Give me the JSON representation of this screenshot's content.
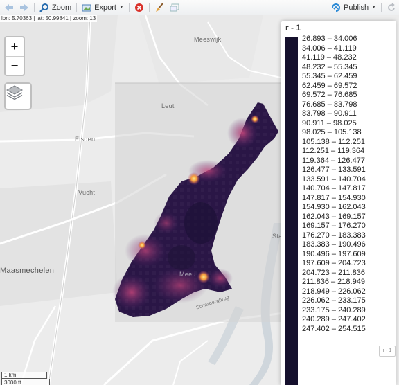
{
  "toolbar": {
    "zoom_label": "Zoom",
    "export_label": "Export",
    "publish_label": "Publish"
  },
  "status": {
    "coords": "lon: 5.70363 | lat: 50.99841 | zoom: 13"
  },
  "map": {
    "places": {
      "meeswijk": "Meeswijk",
      "leut": "Leut",
      "eisden": "Eisden",
      "vucht": "Vucht",
      "maasmechelen": "Maasmechelen",
      "meeuwen": "Meeu",
      "sta": "Sta",
      "street": "Scharbergbrug",
      "ende": "ende"
    },
    "zoom_in": "+",
    "zoom_out": "−"
  },
  "legend": {
    "title": "r - 1",
    "bar_color": "#15102d",
    "items": [
      "26.893 – 34.006",
      "34.006 – 41.119",
      "41.119 – 48.232",
      "48.232 – 55.345",
      "55.345 – 62.459",
      "62.459 – 69.572",
      "69.572 – 76.685",
      "76.685 – 83.798",
      "83.798 – 90.911",
      "90.911 – 98.025",
      "98.025 – 105.138",
      "105.138 – 112.251",
      "112.251 – 119.364",
      "119.364 – 126.477",
      "126.477 – 133.591",
      "133.591 – 140.704",
      "140.704 – 147.817",
      "147.817 – 154.930",
      "154.930 – 162.043",
      "162.043 – 169.157",
      "169.157 – 176.270",
      "176.270 – 183.383",
      "183.383 – 190.496",
      "190.496 – 197.609",
      "197.609 – 204.723",
      "204.723 – 211.836",
      "211.836 – 218.949",
      "218.949 – 226.062",
      "226.062 – 233.175",
      "233.175 – 240.289",
      "240.289 – 247.402",
      "247.402 – 254.515"
    ],
    "badge": "r - 1"
  },
  "scale": {
    "metric": "1 km",
    "imperial": "3000 ft"
  }
}
